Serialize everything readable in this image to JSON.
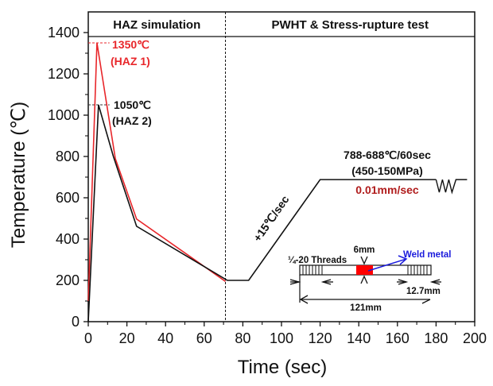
{
  "chart_data": {
    "type": "line",
    "title": "",
    "xlabel": "Time (sec)",
    "ylabel": "Temperature (℃)",
    "xlim": [
      0,
      200
    ],
    "ylim": [
      0,
      1400
    ],
    "xticks": [
      0,
      20,
      40,
      60,
      80,
      100,
      120,
      140,
      160,
      180,
      200
    ],
    "yticks": [
      0,
      200,
      400,
      600,
      800,
      1000,
      1200,
      1400
    ],
    "grid": false,
    "phase_boundary_x": 71,
    "phases": [
      {
        "label": "HAZ simulation",
        "x_range": [
          0,
          71
        ]
      },
      {
        "label": "PWHT & Stress-rupture test",
        "x_range": [
          71,
          200
        ]
      }
    ],
    "series": [
      {
        "name": "HAZ 1",
        "color": "#e8262a",
        "peak_label": "1350℃",
        "sub_label": "(HAZ 1)",
        "x": [
          0,
          4.5,
          14,
          25,
          71
        ],
        "y": [
          100,
          1350,
          790,
          497,
          195
        ]
      },
      {
        "name": "HAZ 2",
        "color": "#111111",
        "peak_label": "1050℃",
        "sub_label": "(HAZ 2)",
        "x": [
          0,
          5.3,
          13,
          25,
          72,
          83,
          120,
          180
        ],
        "y": [
          0,
          1050,
          800,
          462,
          200,
          200,
          688,
          688
        ]
      }
    ],
    "annotations": {
      "ramp_rate": "+15℃/sec",
      "hold_condition": "788-688℃/60sec",
      "stress_range": "(450-150MPa)",
      "strain_rate": "0.01mm/sec",
      "strain_rate_color": "#b01c1c",
      "specimen": {
        "threads": "¼-20 Threads",
        "gauge": "6mm",
        "weld_metal": "Weld metal",
        "weld_metal_color": "#1a1adc",
        "weld_color": "#ff0000",
        "grip_length": "12.7mm",
        "total_length": "121mm"
      }
    }
  }
}
